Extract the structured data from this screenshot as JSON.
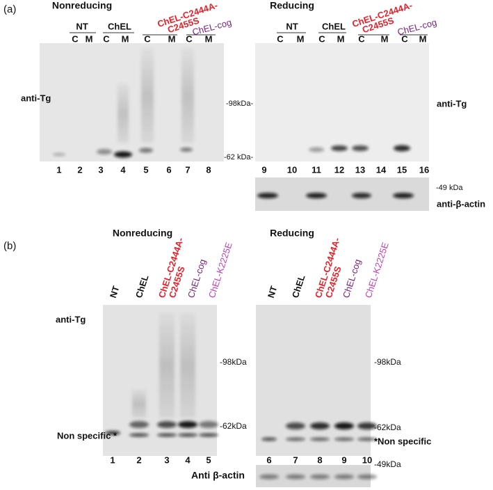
{
  "a": {
    "label": "(a)",
    "nonreducing": {
      "title": "Nonreducing",
      "groups": [
        {
          "name": "NT"
        },
        {
          "name": "ChEL"
        },
        {
          "name": [
            "ChEL-C2444A-",
            "C2455S"
          ]
        },
        {
          "name": "ChEL-cog"
        }
      ],
      "lanes": [
        "C",
        "M",
        "C",
        "M",
        "C",
        "M",
        "C",
        "M"
      ],
      "numbers": [
        "1",
        "2",
        "3",
        "4",
        "5",
        "6",
        "7",
        "8"
      ],
      "antibody": "anti-Tg",
      "markers": [
        "-98kDa-",
        "-62 kDa-"
      ]
    },
    "reducing": {
      "title": "Reducing",
      "groups": [
        {
          "name": "NT"
        },
        {
          "name": "ChEL"
        },
        {
          "name": [
            "ChEL-C2444A-",
            "C2455S"
          ]
        },
        {
          "name": "ChEL-cog"
        }
      ],
      "lanes": [
        "C",
        "M",
        "C",
        "M",
        "C",
        "M",
        "C",
        "M"
      ],
      "numbers": [
        "9",
        "10",
        "11",
        "12",
        "13",
        "14",
        "15",
        "16"
      ],
      "antibody": "anti-Tg",
      "actin_marker": "-49 kDa",
      "actin_label": "anti-β-actin"
    }
  },
  "b": {
    "label": "(b)",
    "nonreducing": {
      "title": "Nonreducing",
      "samples": [
        "NT",
        "ChEL",
        [
          "ChEL-C2444A-",
          "C2455S"
        ],
        "ChEL-cog",
        "ChEL-K2225E"
      ],
      "numbers": [
        "1",
        "2",
        "3",
        "4",
        "5"
      ],
      "antibody": "anti-Tg",
      "markers": [
        "-98kDa",
        "-62kDa"
      ],
      "nonspecific": "Non specific *"
    },
    "reducing": {
      "title": "Reducing",
      "samples": [
        "NT",
        "ChEL",
        [
          "ChEL-C2444A-",
          "C2455S"
        ],
        "ChEL-cog",
        "ChEL-K2225E"
      ],
      "numbers": [
        "6",
        "7",
        "8",
        "9",
        "10"
      ],
      "markers": [
        "-98kDa",
        "-62kDa"
      ],
      "nonspecific": "*Non specific",
      "actin_label": "Anti β-actin",
      "actin_marker": "-49kDa"
    }
  }
}
